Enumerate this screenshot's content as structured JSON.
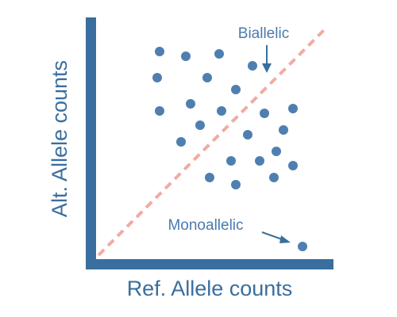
{
  "chart_data": {
    "type": "scatter",
    "title": "",
    "xlabel": "Ref. Allele counts",
    "ylabel": "Alt. Allele counts",
    "xlim": [
      0,
      100
    ],
    "ylim": [
      0,
      100
    ],
    "grid": false,
    "points": [
      {
        "x": 27,
        "y": 87
      },
      {
        "x": 38,
        "y": 85
      },
      {
        "x": 52,
        "y": 86
      },
      {
        "x": 66,
        "y": 81
      },
      {
        "x": 26,
        "y": 76
      },
      {
        "x": 47,
        "y": 76
      },
      {
        "x": 59,
        "y": 71
      },
      {
        "x": 27,
        "y": 62
      },
      {
        "x": 40,
        "y": 65
      },
      {
        "x": 53,
        "y": 62
      },
      {
        "x": 71,
        "y": 61
      },
      {
        "x": 83,
        "y": 63
      },
      {
        "x": 44,
        "y": 56
      },
      {
        "x": 64,
        "y": 52
      },
      {
        "x": 79,
        "y": 54
      },
      {
        "x": 36,
        "y": 49
      },
      {
        "x": 57,
        "y": 41
      },
      {
        "x": 69,
        "y": 41
      },
      {
        "x": 76,
        "y": 45
      },
      {
        "x": 83,
        "y": 39
      },
      {
        "x": 48,
        "y": 34
      },
      {
        "x": 59,
        "y": 31
      },
      {
        "x": 75,
        "y": 34
      },
      {
        "x": 87,
        "y": 5
      }
    ],
    "reference_line": {
      "from": [
        0,
        0
      ],
      "to": [
        100,
        100
      ],
      "style": "dashed"
    },
    "annotations": [
      {
        "text": "Biallelic",
        "target": {
          "x": 71,
          "y": 81
        }
      },
      {
        "text": "Monoallelic",
        "target": {
          "x": 84,
          "y": 7
        }
      }
    ],
    "colors": {
      "axis": "#3a6e9f",
      "points": "#4f7fb0",
      "reference_line": "#f2aaa5",
      "text": "#4a7ab0"
    }
  }
}
